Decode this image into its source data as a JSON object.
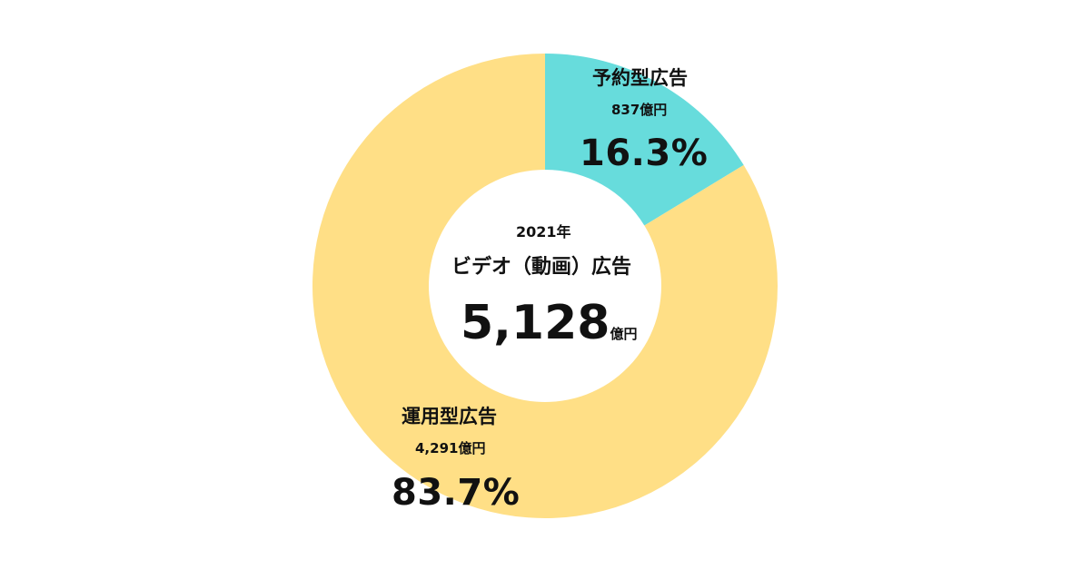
{
  "chart_data": {
    "type": "pie",
    "donut": true,
    "center": {
      "year": "2021年",
      "title": "ビデオ（動画）広告",
      "total": "5,128",
      "unit": "億円"
    },
    "slices": [
      {
        "name": "予約型広告",
        "amount": "837億円",
        "percent": "16.3%",
        "value": 16.3,
        "color": "#67dcdc"
      },
      {
        "name": "運用型広告",
        "amount": "4,291億円",
        "percent": "83.7%",
        "value": 83.7,
        "color": "#ffdf86"
      }
    ]
  }
}
